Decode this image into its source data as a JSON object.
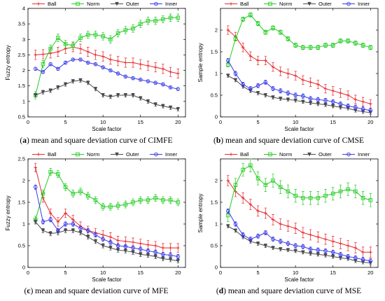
{
  "colors": {
    "Ball": "#e8282d",
    "Norm": "#22cc22",
    "Outer": "#4a4a4a",
    "Inner": "#3838e8"
  },
  "captions": [
    {
      "letter": "a",
      "text": " mean and square deviation curve of CIMFE"
    },
    {
      "letter": "b",
      "text": " mean and square deviation curve of CMSE"
    },
    {
      "letter": "c",
      "text": " mean and square deviation curve of MFE"
    },
    {
      "letter": "d",
      "text": " mean and square deviation curve of MSE"
    }
  ],
  "chart_data": [
    {
      "type": "line",
      "xlabel": "Scale factor",
      "ylabel": "Fuzzy entropy",
      "xlim": [
        0,
        21
      ],
      "ylim": [
        0.5,
        4
      ],
      "xticks": [
        0,
        5,
        10,
        15,
        20
      ],
      "yticks": [
        0.5,
        1,
        1.5,
        2,
        2.5,
        3,
        3.5,
        4
      ],
      "legend_position": "top",
      "series": [
        {
          "name": "Ball",
          "marker": "plus",
          "err": 0.15,
          "values": [
            2.5,
            2.52,
            2.55,
            2.6,
            2.7,
            2.75,
            2.7,
            2.6,
            2.5,
            2.45,
            2.35,
            2.3,
            2.25,
            2.25,
            2.2,
            2.15,
            2.1,
            2.05,
            1.95,
            1.9
          ]
        },
        {
          "name": "Norm",
          "marker": "square",
          "err": 0.12,
          "values": [
            1.2,
            2.2,
            2.7,
            3.05,
            2.85,
            2.8,
            3.05,
            3.15,
            3.15,
            3.1,
            3.0,
            3.2,
            3.3,
            3.35,
            3.5,
            3.6,
            3.6,
            3.65,
            3.7,
            3.7
          ]
        },
        {
          "name": "Outer",
          "marker": "tri-down",
          "err": 0.06,
          "values": [
            1.2,
            1.3,
            1.35,
            1.45,
            1.55,
            1.65,
            1.68,
            1.6,
            1.4,
            1.2,
            1.15,
            1.2,
            1.2,
            1.2,
            1.1,
            1.0,
            0.9,
            0.85,
            0.8,
            0.75
          ]
        },
        {
          "name": "Inner",
          "marker": "circle",
          "err": 0.05,
          "values": [
            2.05,
            1.95,
            2.2,
            2.05,
            2.25,
            2.35,
            2.35,
            2.25,
            2.2,
            2.1,
            2.0,
            1.9,
            1.8,
            1.75,
            1.7,
            1.65,
            1.6,
            1.55,
            1.45,
            1.4
          ]
        }
      ]
    },
    {
      "type": "line",
      "xlabel": "Scale factor",
      "ylabel": "Sample entropy",
      "xlim": [
        0,
        21
      ],
      "ylim": [
        0,
        2.5
      ],
      "xticks": [
        0,
        5,
        10,
        15,
        20
      ],
      "yticks": [
        0,
        0.5,
        1,
        1.5,
        2
      ],
      "legend_position": "top",
      "series": [
        {
          "name": "Ball",
          "marker": "plus",
          "err": 0.1,
          "values": [
            2.0,
            1.85,
            1.6,
            1.4,
            1.3,
            1.3,
            1.15,
            1.05,
            1.0,
            0.95,
            0.85,
            0.8,
            0.75,
            0.65,
            0.6,
            0.55,
            0.5,
            0.4,
            0.35,
            0.3
          ]
        },
        {
          "name": "Norm",
          "marker": "square",
          "err": 0.05,
          "values": [
            1.2,
            1.8,
            2.25,
            2.35,
            2.15,
            1.95,
            2.05,
            1.95,
            1.8,
            1.65,
            1.6,
            1.6,
            1.6,
            1.65,
            1.65,
            1.75,
            1.75,
            1.7,
            1.65,
            1.6
          ]
        },
        {
          "name": "Outer",
          "marker": "tri-down",
          "err": 0.04,
          "values": [
            0.95,
            0.85,
            0.7,
            0.6,
            0.55,
            0.5,
            0.45,
            0.42,
            0.4,
            0.38,
            0.35,
            0.32,
            0.3,
            0.28,
            0.25,
            0.22,
            0.2,
            0.15,
            0.12,
            0.1
          ]
        },
        {
          "name": "Inner",
          "marker": "circle",
          "err": 0.05,
          "values": [
            1.3,
            1.0,
            0.75,
            0.65,
            0.72,
            0.8,
            0.65,
            0.6,
            0.55,
            0.5,
            0.48,
            0.42,
            0.4,
            0.38,
            0.35,
            0.3,
            0.25,
            0.22,
            0.18,
            0.15
          ]
        }
      ]
    },
    {
      "type": "line",
      "xlabel": "Scale factor",
      "ylabel": "Fuzzy entropy",
      "xlim": [
        0,
        21
      ],
      "ylim": [
        0,
        2.5
      ],
      "xticks": [
        0,
        5,
        10,
        15,
        20
      ],
      "yticks": [
        0,
        0.5,
        1,
        1.5,
        2,
        2.5
      ],
      "legend_position": "top",
      "series": [
        {
          "name": "Ball",
          "marker": "plus",
          "err": 0.1,
          "values": [
            2.3,
            1.6,
            1.25,
            1.05,
            1.25,
            1.1,
            0.95,
            0.85,
            0.8,
            0.75,
            0.7,
            0.62,
            0.6,
            0.58,
            0.55,
            0.52,
            0.5,
            0.45,
            0.45,
            0.45
          ]
        },
        {
          "name": "Norm",
          "marker": "square",
          "err": 0.08,
          "values": [
            1.1,
            1.7,
            2.2,
            2.15,
            1.85,
            1.7,
            1.75,
            1.65,
            1.55,
            1.4,
            1.4,
            1.42,
            1.45,
            1.5,
            1.55,
            1.55,
            1.6,
            1.55,
            1.55,
            1.5
          ]
        },
        {
          "name": "Outer",
          "marker": "tri-down",
          "err": 0.05,
          "values": [
            1.05,
            0.85,
            0.78,
            0.8,
            0.85,
            0.85,
            0.8,
            0.7,
            0.6,
            0.5,
            0.45,
            0.4,
            0.38,
            0.35,
            0.3,
            0.28,
            0.25,
            0.2,
            0.18,
            0.15
          ]
        },
        {
          "name": "Inner",
          "marker": "circle",
          "err": 0.05,
          "values": [
            1.85,
            1.05,
            1.1,
            0.85,
            1.0,
            1.0,
            0.9,
            0.85,
            0.75,
            0.65,
            0.58,
            0.5,
            0.48,
            0.45,
            0.42,
            0.38,
            0.35,
            0.3,
            0.28,
            0.25
          ]
        }
      ]
    },
    {
      "type": "line",
      "xlabel": "Scale factor",
      "ylabel": "Sample entropy",
      "xlim": [
        0,
        21
      ],
      "ylim": [
        0,
        2.5
      ],
      "xticks": [
        0,
        5,
        10,
        15,
        20
      ],
      "yticks": [
        0,
        0.5,
        1,
        1.5,
        2
      ],
      "legend_position": "top",
      "series": [
        {
          "name": "Ball",
          "marker": "plus",
          "err": 0.12,
          "values": [
            2.0,
            1.75,
            1.6,
            1.45,
            1.3,
            1.25,
            1.1,
            1.0,
            0.95,
            0.9,
            0.8,
            0.75,
            0.7,
            0.65,
            0.6,
            0.55,
            0.5,
            0.45,
            0.35,
            0.35
          ]
        },
        {
          "name": "Norm",
          "marker": "square",
          "err": 0.15,
          "values": [
            1.2,
            1.9,
            2.25,
            2.35,
            2.05,
            1.9,
            2.0,
            1.85,
            1.75,
            1.65,
            1.6,
            1.6,
            1.6,
            1.65,
            1.7,
            1.75,
            1.8,
            1.75,
            1.6,
            1.55
          ]
        },
        {
          "name": "Outer",
          "marker": "tri-down",
          "err": 0.04,
          "values": [
            0.95,
            0.85,
            0.7,
            0.6,
            0.55,
            0.5,
            0.45,
            0.42,
            0.4,
            0.38,
            0.35,
            0.32,
            0.3,
            0.28,
            0.25,
            0.22,
            0.2,
            0.15,
            0.12,
            0.1
          ]
        },
        {
          "name": "Inner",
          "marker": "circle",
          "err": 0.05,
          "values": [
            1.3,
            1.0,
            0.75,
            0.65,
            0.72,
            0.8,
            0.65,
            0.6,
            0.55,
            0.5,
            0.48,
            0.42,
            0.4,
            0.38,
            0.35,
            0.3,
            0.25,
            0.22,
            0.18,
            0.15
          ]
        }
      ]
    }
  ]
}
